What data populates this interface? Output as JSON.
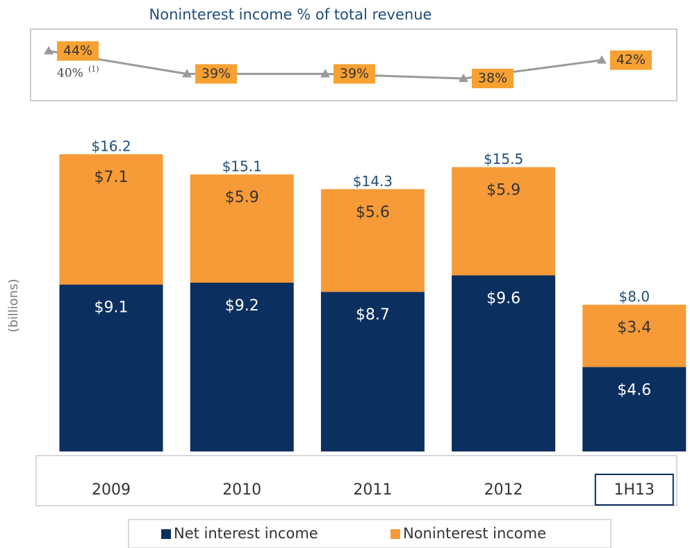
{
  "chart_data": [
    {
      "type": "line",
      "title": "Noninterest income % of total revenue",
      "categories": [
        "2009",
        "2010",
        "2011",
        "2012",
        "1H13"
      ],
      "values": [
        44,
        39,
        39,
        38,
        42
      ],
      "value_labels": [
        "44%",
        "39%",
        "39%",
        "38%",
        "42%"
      ],
      "annotations": [
        "40%",
        "(1)"
      ],
      "color": "#9a9a9a",
      "label_color": "#f7a133",
      "ylim": [
        33,
        48
      ]
    },
    {
      "type": "stacked_bar",
      "y_label": "(billions)",
      "categories": [
        "2009",
        "2010",
        "2011",
        "2012",
        "1H13"
      ],
      "series": [
        {
          "name": "Net interest income",
          "color": "#0b2f5e",
          "values": [
            9.1,
            9.2,
            8.7,
            9.6,
            4.6
          ],
          "value_labels": [
            "$9.1",
            "$9.2",
            "$8.7",
            "$9.6",
            "$4.6"
          ]
        },
        {
          "name": "Noninterest income",
          "color": "#f79a38",
          "values": [
            7.1,
            5.9,
            5.6,
            5.9,
            3.4
          ],
          "value_labels": [
            "$7.1",
            "$5.9",
            "$5.6",
            "$5.9",
            "$3.4"
          ]
        }
      ],
      "totals": {
        "values": [
          16.2,
          15.1,
          14.3,
          15.5,
          8.0
        ],
        "value_labels": [
          "$16.2",
          "$15.1",
          "$14.3",
          "$15.5",
          "$8.0"
        ]
      },
      "ylim": [
        0,
        17
      ]
    }
  ]
}
